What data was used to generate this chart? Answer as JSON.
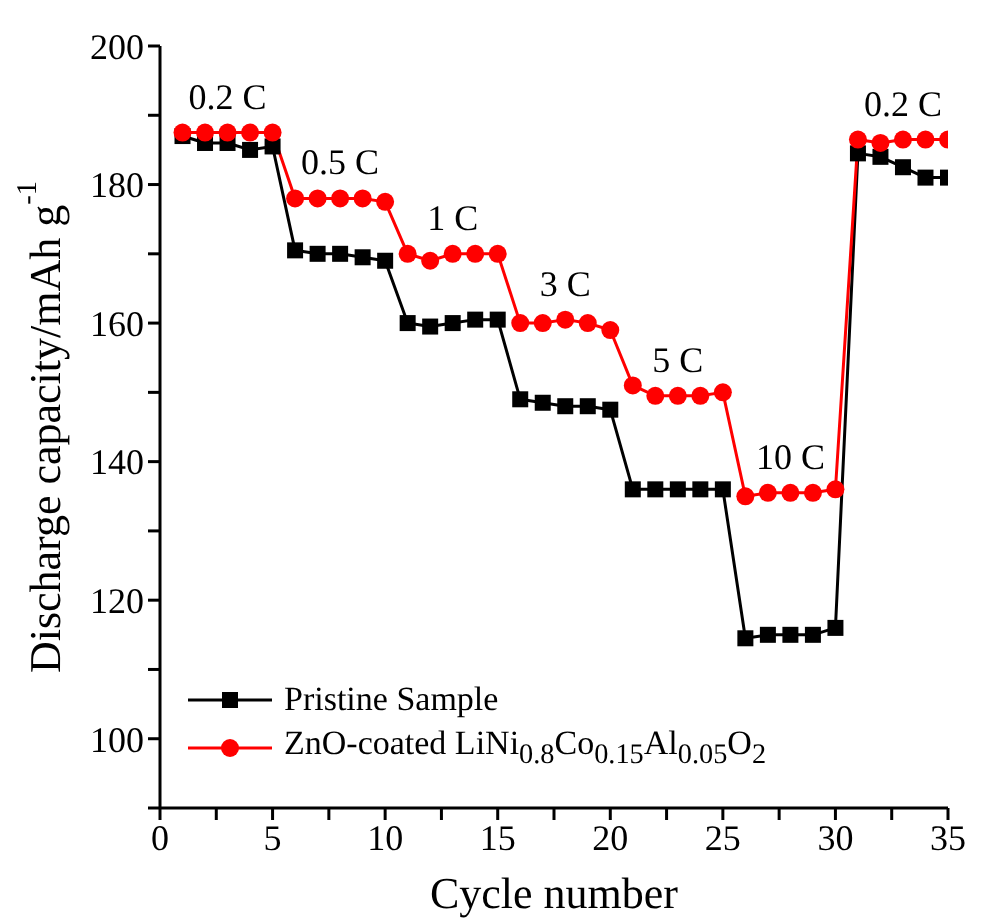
{
  "chart_data": {
    "type": "line",
    "xlabel": "Cycle number",
    "ylabel": "Discharge capacity/mAh g$^{-1}$",
    "x": [
      1,
      2,
      3,
      4,
      5,
      6,
      7,
      8,
      9,
      10,
      11,
      12,
      13,
      14,
      15,
      16,
      17,
      18,
      19,
      20,
      21,
      22,
      23,
      24,
      25,
      26,
      27,
      28,
      29,
      30,
      31,
      32,
      33,
      34,
      35
    ],
    "series": [
      {
        "name": "Pristine Sample",
        "color": "#000000",
        "marker": "square",
        "values": [
          187,
          186,
          186,
          185,
          185.5,
          170.5,
          170,
          170,
          169.5,
          169,
          160,
          159.5,
          160,
          160.5,
          160.5,
          149,
          148.5,
          148,
          148,
          147.5,
          136,
          136,
          136,
          136,
          136,
          114.5,
          115,
          115,
          115,
          116,
          184.5,
          184,
          182.5,
          181,
          181
        ]
      },
      {
        "name": "ZnO-coated LiNi$_{0.8}$Co$_{0.15}$Al$_{0.05}$O$_{2}$",
        "color": "#ff0000",
        "marker": "circle",
        "values": [
          187.5,
          187.5,
          187.5,
          187.5,
          187.5,
          178,
          178,
          178,
          178,
          177.5,
          170,
          169,
          170,
          170,
          170,
          160,
          160,
          160.5,
          160,
          159,
          151,
          149.5,
          149.5,
          149.5,
          150,
          135,
          135.5,
          135.5,
          135.5,
          136,
          186.5,
          186,
          186.5,
          186.5,
          186.5
        ]
      }
    ],
    "xlim": [
      0,
      35
    ],
    "xticks": [
      0,
      {
        "value": 2.5,
        "label": null
      },
      5,
      {
        "value": 7.5,
        "label": null
      },
      10,
      {
        "value": 12.5,
        "label": null
      },
      15,
      {
        "value": 17.5,
        "label": null
      },
      20,
      {
        "value": 22.5,
        "label": null
      },
      25,
      {
        "value": 27.5,
        "label": null
      },
      30,
      {
        "value": 32.5,
        "label": null
      },
      35
    ],
    "ylim": [
      90,
      200
    ],
    "yticks": [
      {
        "value": 90,
        "label": null
      },
      100,
      {
        "value": 110,
        "label": null
      },
      120,
      {
        "value": 130,
        "label": null
      },
      140,
      {
        "value": 150,
        "label": null
      },
      160,
      {
        "value": 170,
        "label": null
      },
      180,
      {
        "value": 190,
        "label": null
      },
      200
    ],
    "annotations": [
      {
        "text": "0.2 C",
        "x": 3,
        "y": 187.5
      },
      {
        "text": "0.5 C",
        "x": 8,
        "y": 178
      },
      {
        "text": "1 C",
        "x": 13,
        "y": 170
      },
      {
        "text": "3 C",
        "x": 18,
        "y": 160.5
      },
      {
        "text": "5 C",
        "x": 23,
        "y": 149.5
      },
      {
        "text": "10 C",
        "x": 28,
        "y": 135.5
      },
      {
        "text": "0.2 C",
        "x": 33,
        "y": 186.5
      }
    ],
    "legend": "bottom left",
    "grid": false,
    "line_style": "solid"
  }
}
